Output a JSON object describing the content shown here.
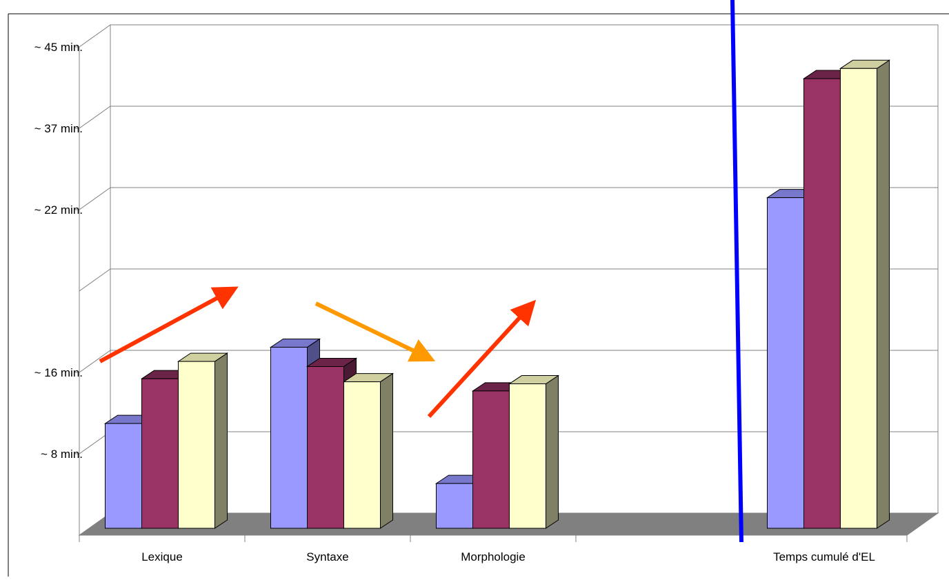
{
  "chart_data": {
    "type": "bar",
    "style": "3d-clustered-column",
    "categories": [
      "Lexique",
      "Syntaxe",
      "Morphologie",
      "",
      "Temps cumulé d'EL"
    ],
    "series": [
      {
        "values": [
          10.3,
          17.8,
          4.4,
          null,
          32.5
        ]
      },
      {
        "values": [
          14.7,
          15.9,
          13.5,
          null,
          44.2
        ]
      },
      {
        "values": [
          16.4,
          14.4,
          14.2,
          null,
          45.2
        ]
      }
    ],
    "y_tick_labels": [
      "~ 8 min.",
      "~ 16 min.",
      "~ 22 min.",
      "~ 37 min.",
      "~ 45 min."
    ],
    "ylim": [
      0,
      48
    ],
    "legend": "none",
    "grid": true,
    "annotations": [
      {
        "type": "arrow",
        "color": "#ff3300",
        "direction": "up"
      },
      {
        "type": "arrow",
        "color": "#ff9900",
        "direction": "down"
      },
      {
        "type": "arrow",
        "color": "#ff3300",
        "direction": "up"
      },
      {
        "type": "separator-line",
        "color": "#0000ff"
      }
    ],
    "colors": {
      "series_front": [
        "#9999ff",
        "#993366",
        "#ffffcc"
      ],
      "series_top": [
        "#7777cc",
        "#6b2347",
        "#cfcfa0"
      ],
      "series_side": [
        "#4f4f8a",
        "#4a1a33",
        "#808066"
      ],
      "floor": "#808080",
      "grid": "#808080",
      "axis": "#808080"
    }
  }
}
